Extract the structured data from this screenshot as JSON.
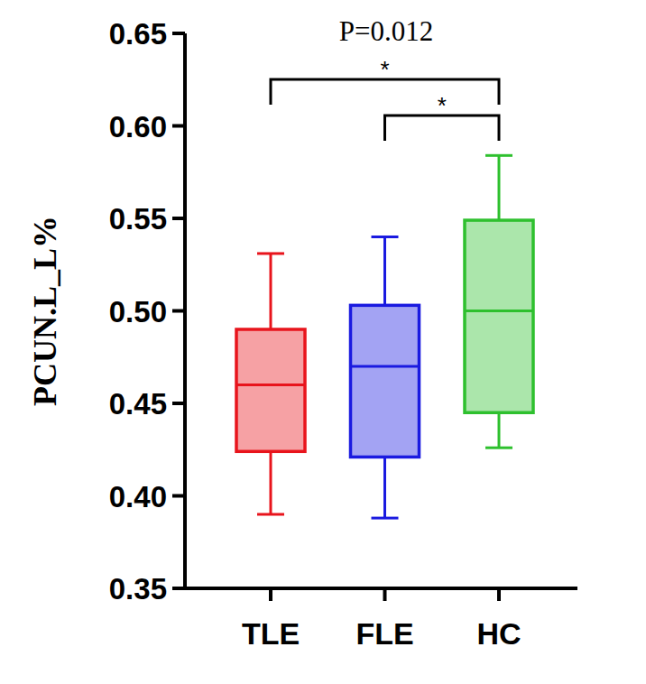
{
  "chart_data": {
    "type": "box",
    "ylabel": "PCUN.L_L%",
    "annotation": "P=0.012",
    "categories": [
      "TLE",
      "FLE",
      "HC"
    ],
    "colors": [
      "#e8141c",
      "#1a1ae0",
      "#2ec02e"
    ],
    "min": [
      0.39,
      0.388,
      0.426
    ],
    "q1": [
      0.424,
      0.421,
      0.445
    ],
    "median": [
      0.46,
      0.47,
      0.5
    ],
    "q3": [
      0.49,
      0.503,
      0.549
    ],
    "max": [
      0.531,
      0.54,
      0.584
    ],
    "comparisons": [
      {
        "pair": [
          "TLE",
          "HC"
        ],
        "label": "*"
      },
      {
        "pair": [
          "FLE",
          "HC"
        ],
        "label": "*"
      }
    ],
    "ylim": [
      0.35,
      0.65
    ],
    "yticks": [
      0.35,
      {
        "value": 0.4,
        "label": "0.40"
      },
      0.45,
      {
        "value": 0.5,
        "label": "0.50"
      },
      0.55,
      {
        "value": 0.6,
        "label": "0.60"
      },
      0.65
    ],
    "grid": false
  }
}
